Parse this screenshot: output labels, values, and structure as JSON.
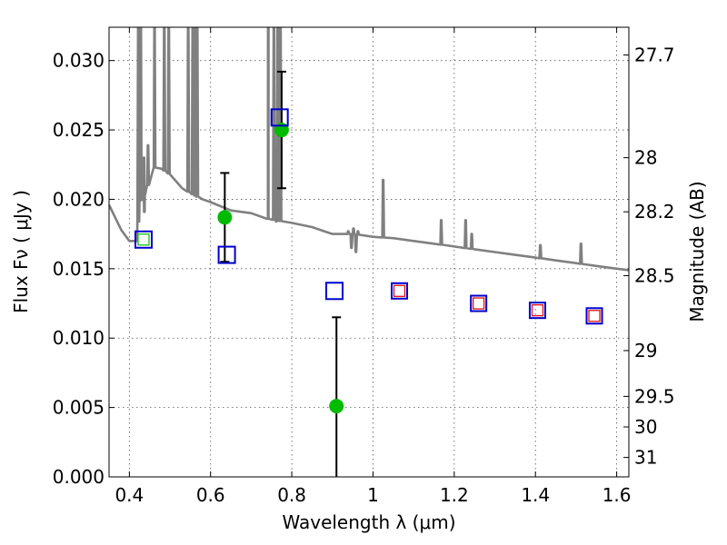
{
  "chart_data": {
    "type": "scatter",
    "xlabel": "Wavelength  λ (μm)",
    "ylabel": "Flux  Fν  ( μJy )",
    "y2label": "Magnitude (AB)",
    "xlim": [
      0.35,
      1.63
    ],
    "ylim": [
      0.0,
      0.0324
    ],
    "x_ticks": [
      0.4,
      0.6,
      0.8,
      1.0,
      1.2,
      1.4,
      1.6
    ],
    "x_tick_labels": [
      "0.4",
      "0.6",
      "0.8",
      "1",
      "1.2",
      "1.4",
      "1.6"
    ],
    "y_ticks": [
      0.0,
      0.005,
      0.01,
      0.015,
      0.02,
      0.025,
      0.03
    ],
    "y_tick_labels": [
      "0.000",
      "0.005",
      "0.010",
      "0.015",
      "0.020",
      "0.025",
      "0.030"
    ],
    "y2_ticks": [
      {
        "label": "27.7",
        "flux": 0.0304
      },
      {
        "label": "28",
        "flux": 0.023
      },
      {
        "label": "28.2",
        "flux": 0.0191
      },
      {
        "label": "28.5",
        "flux": 0.0145
      },
      {
        "label": "29",
        "flux": 0.0091
      },
      {
        "label": "29.5",
        "flux": 0.0058
      },
      {
        "label": "30",
        "flux": 0.0036
      },
      {
        "label": "31",
        "flux": 0.0014
      }
    ],
    "grid": true,
    "colors": {
      "spectrum": "#808080",
      "observed": "#00bb00",
      "model_box": "#0000cc",
      "model_inner": "#dd0000",
      "errorbar": "#000000"
    },
    "series": [
      {
        "kind": "observed",
        "points": [
          {
            "x": 0.635,
            "y": 0.0187,
            "yerr_low": 0.0155,
            "yerr_high": 0.0219
          },
          {
            "x": 0.775,
            "y": 0.025,
            "yerr_low": 0.0208,
            "yerr_high": 0.0292
          },
          {
            "x": 0.91,
            "y": 0.0051,
            "yerr_low": 0.0,
            "yerr_high": 0.0115
          }
        ]
      },
      {
        "kind": "model_blue",
        "points": [
          {
            "x": 0.435,
            "y": 0.0171
          },
          {
            "x": 0.64,
            "y": 0.016
          },
          {
            "x": 0.77,
            "y": 0.0259
          },
          {
            "x": 0.905,
            "y": 0.0134
          }
        ]
      },
      {
        "kind": "model_red",
        "points": [
          {
            "x": 1.065,
            "y": 0.0134
          },
          {
            "x": 1.26,
            "y": 0.0125
          },
          {
            "x": 1.405,
            "y": 0.012
          },
          {
            "x": 1.545,
            "y": 0.0116
          }
        ]
      },
      {
        "kind": "model_green_inner",
        "points": [
          {
            "x": 0.435,
            "y": 0.0171
          }
        ]
      }
    ],
    "spectrum": {
      "continuum": [
        [
          0.35,
          0.0196
        ],
        [
          0.38,
          0.0178
        ],
        [
          0.4,
          0.017
        ],
        [
          0.419,
          0.017
        ],
        [
          0.425,
          0.0198
        ],
        [
          0.44,
          0.0205
        ],
        [
          0.46,
          0.0223
        ],
        [
          0.48,
          0.0222
        ],
        [
          0.5,
          0.0218
        ],
        [
          0.53,
          0.0208
        ],
        [
          0.56,
          0.0203
        ],
        [
          0.58,
          0.02
        ],
        [
          0.6,
          0.0198
        ],
        [
          0.65,
          0.0192
        ],
        [
          0.7,
          0.019
        ],
        [
          0.74,
          0.0186
        ],
        [
          0.78,
          0.0184
        ],
        [
          0.8,
          0.0183
        ],
        [
          0.85,
          0.018
        ],
        [
          0.88,
          0.0177
        ],
        [
          0.9,
          0.0175
        ],
        [
          0.92,
          0.0175
        ],
        [
          0.95,
          0.0175
        ],
        [
          1.0,
          0.0173
        ],
        [
          1.05,
          0.0172
        ],
        [
          1.1,
          0.017
        ],
        [
          1.15,
          0.0168
        ],
        [
          1.2,
          0.0166
        ],
        [
          1.25,
          0.0164
        ],
        [
          1.3,
          0.0162
        ],
        [
          1.35,
          0.016
        ],
        [
          1.4,
          0.0158
        ],
        [
          1.45,
          0.0156
        ],
        [
          1.5,
          0.0154
        ],
        [
          1.55,
          0.0152
        ],
        [
          1.6,
          0.015
        ],
        [
          1.63,
          0.0149
        ]
      ],
      "lines": [
        {
          "x": 0.422,
          "peak": 0.0324,
          "base": 0.017
        },
        {
          "x": 0.428,
          "peak": 0.0324,
          "base": 0.02
        },
        {
          "x": 0.436,
          "peak": 0.023,
          "base": 0.0205
        },
        {
          "x": 0.446,
          "peak": 0.0239,
          "base": 0.021
        },
        {
          "x": 0.462,
          "peak": 0.0324,
          "base": 0.0223
        },
        {
          "x": 0.486,
          "peak": 0.0324,
          "base": 0.0222
        },
        {
          "x": 0.497,
          "peak": 0.0324,
          "base": 0.0218
        },
        {
          "x": 0.545,
          "peak": 0.0324,
          "base": 0.0204
        },
        {
          "x": 0.556,
          "peak": 0.0324,
          "base": 0.0203
        },
        {
          "x": 0.562,
          "peak": 0.0324,
          "base": 0.0202
        },
        {
          "x": 0.567,
          "peak": 0.0324,
          "base": 0.0201
        },
        {
          "x": 0.742,
          "peak": 0.0324,
          "base": 0.0185
        },
        {
          "x": 0.756,
          "peak": 0.0324,
          "base": 0.0185
        },
        {
          "x": 0.765,
          "peak": 0.0324,
          "base": 0.0184
        },
        {
          "x": 0.772,
          "peak": 0.0324,
          "base": 0.0184
        },
        {
          "x": 0.939,
          "peak": 0.0177,
          "base": 0.0168
        },
        {
          "x": 0.952,
          "peak": 0.0179,
          "base": 0.0168
        },
        {
          "x": 0.963,
          "peak": 0.0177,
          "base": 0.0168
        },
        {
          "x": 1.025,
          "peak": 0.0214,
          "base": 0.0172
        },
        {
          "x": 1.168,
          "peak": 0.0185,
          "base": 0.0168
        },
        {
          "x": 1.228,
          "peak": 0.0185,
          "base": 0.0165
        },
        {
          "x": 1.243,
          "peak": 0.0175,
          "base": 0.0164
        },
        {
          "x": 1.412,
          "peak": 0.0167,
          "base": 0.0158
        },
        {
          "x": 1.512,
          "peak": 0.0168,
          "base": 0.0154
        }
      ],
      "absorptions": [
        {
          "x": 0.437,
          "depth": 0.0191
        },
        {
          "x": 0.742,
          "depth": 0.0186
        },
        {
          "x": 0.762,
          "depth": 0.0184
        },
        {
          "x": 0.947,
          "depth": 0.0165
        },
        {
          "x": 0.958,
          "depth": 0.0162
        }
      ]
    }
  }
}
